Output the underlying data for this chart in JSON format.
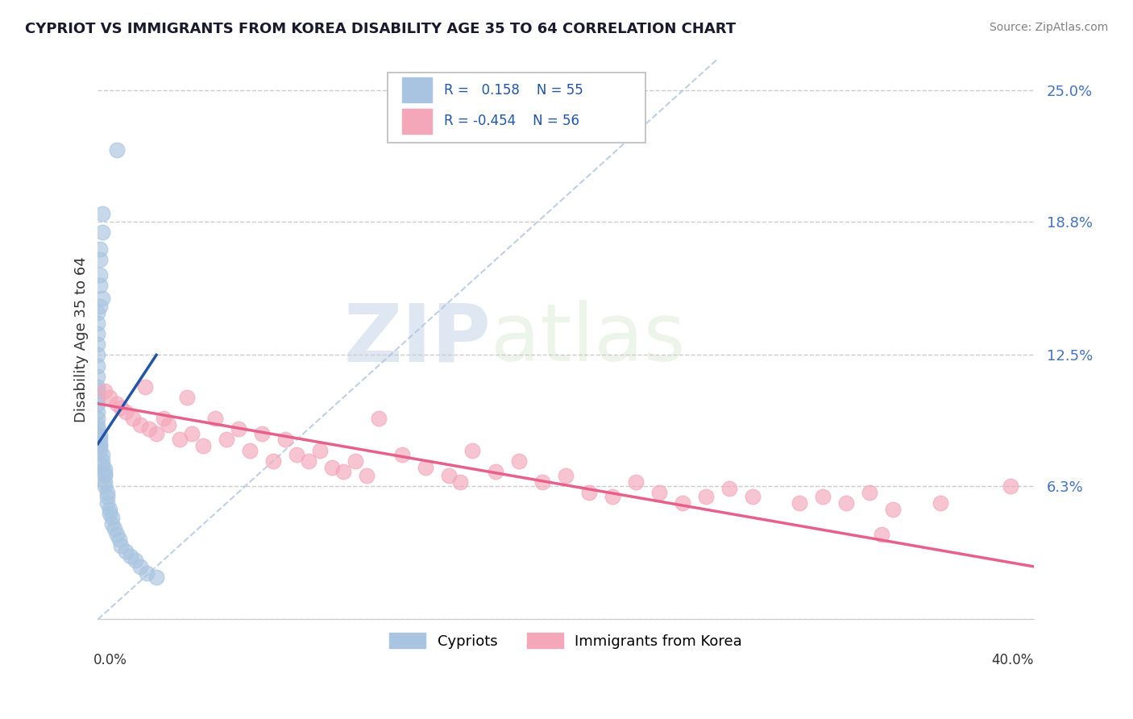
{
  "title": "CYPRIOT VS IMMIGRANTS FROM KOREA DISABILITY AGE 35 TO 64 CORRELATION CHART",
  "source": "Source: ZipAtlas.com",
  "ylabel": "Disability Age 35 to 64",
  "y_ticks": [
    0.0,
    0.063,
    0.125,
    0.188,
    0.25
  ],
  "y_tick_labels": [
    "",
    "6.3%",
    "12.5%",
    "18.8%",
    "25.0%"
  ],
  "x_range": [
    0.0,
    0.4
  ],
  "y_range": [
    0.0,
    0.265
  ],
  "legend_blue_label": "Cypriots",
  "legend_pink_label": "Immigrants from Korea",
  "blue_color": "#a8c4e0",
  "blue_line_color": "#2255aa",
  "pink_color": "#f4a7b9",
  "pink_line_color": "#e8608a",
  "diag_color": "#b0c4de",
  "watermark_color": "#d0dde8",
  "blue_scatter_x": [
    0.008,
    0.002,
    0.002,
    0.001,
    0.001,
    0.001,
    0.001,
    0.002,
    0.001,
    0.0,
    0.0,
    0.0,
    0.0,
    0.0,
    0.0,
    0.0,
    0.0,
    0.0,
    0.0,
    0.0,
    0.0,
    0.0,
    0.0,
    0.0,
    0.0,
    0.001,
    0.001,
    0.001,
    0.001,
    0.001,
    0.002,
    0.002,
    0.002,
    0.003,
    0.003,
    0.003,
    0.003,
    0.003,
    0.004,
    0.004,
    0.004,
    0.005,
    0.005,
    0.006,
    0.006,
    0.007,
    0.008,
    0.009,
    0.01,
    0.012,
    0.014,
    0.016,
    0.018,
    0.021,
    0.025
  ],
  "blue_scatter_y": [
    0.222,
    0.192,
    0.183,
    0.175,
    0.17,
    0.163,
    0.158,
    0.152,
    0.148,
    0.145,
    0.14,
    0.135,
    0.13,
    0.125,
    0.12,
    0.115,
    0.11,
    0.108,
    0.105,
    0.102,
    0.098,
    0.095,
    0.092,
    0.09,
    0.088,
    0.087,
    0.085,
    0.083,
    0.082,
    0.08,
    0.078,
    0.075,
    0.073,
    0.071,
    0.069,
    0.068,
    0.065,
    0.063,
    0.06,
    0.058,
    0.055,
    0.052,
    0.05,
    0.048,
    0.045,
    0.043,
    0.04,
    0.038,
    0.035,
    0.032,
    0.03,
    0.028,
    0.025,
    0.022,
    0.02
  ],
  "pink_scatter_x": [
    0.003,
    0.005,
    0.008,
    0.01,
    0.012,
    0.015,
    0.018,
    0.02,
    0.022,
    0.025,
    0.028,
    0.03,
    0.035,
    0.038,
    0.04,
    0.045,
    0.05,
    0.055,
    0.06,
    0.065,
    0.07,
    0.075,
    0.08,
    0.085,
    0.09,
    0.095,
    0.1,
    0.105,
    0.11,
    0.115,
    0.12,
    0.13,
    0.14,
    0.15,
    0.155,
    0.16,
    0.17,
    0.18,
    0.19,
    0.2,
    0.21,
    0.22,
    0.23,
    0.24,
    0.25,
    0.26,
    0.27,
    0.28,
    0.3,
    0.31,
    0.32,
    0.33,
    0.34,
    0.36,
    0.39,
    0.335
  ],
  "pink_scatter_y": [
    0.108,
    0.105,
    0.102,
    0.1,
    0.098,
    0.095,
    0.092,
    0.11,
    0.09,
    0.088,
    0.095,
    0.092,
    0.085,
    0.105,
    0.088,
    0.082,
    0.095,
    0.085,
    0.09,
    0.08,
    0.088,
    0.075,
    0.085,
    0.078,
    0.075,
    0.08,
    0.072,
    0.07,
    0.075,
    0.068,
    0.095,
    0.078,
    0.072,
    0.068,
    0.065,
    0.08,
    0.07,
    0.075,
    0.065,
    0.068,
    0.06,
    0.058,
    0.065,
    0.06,
    0.055,
    0.058,
    0.062,
    0.058,
    0.055,
    0.058,
    0.055,
    0.06,
    0.052,
    0.055,
    0.063,
    0.04
  ],
  "blue_line_x": [
    0.0,
    0.025
  ],
  "blue_line_y": [
    0.083,
    0.125
  ],
  "pink_line_x": [
    0.0,
    0.4
  ],
  "pink_line_y": [
    0.102,
    0.025
  ]
}
